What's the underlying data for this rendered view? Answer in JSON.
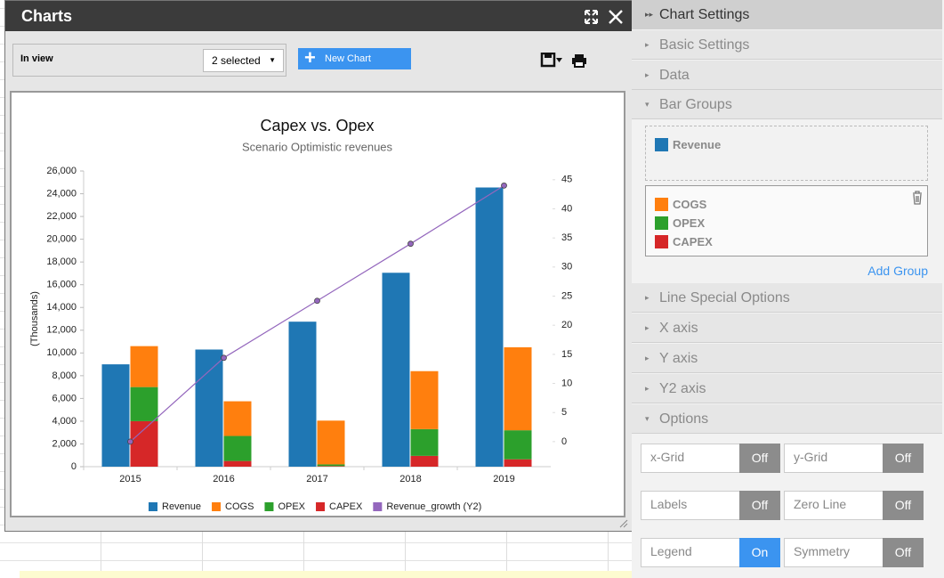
{
  "window": {
    "title": "Charts",
    "view_label": "In view",
    "select": "2 selected",
    "new_chart": "New Chart"
  },
  "chart_data": {
    "type": "bar",
    "title": "Capex vs. Opex",
    "subtitle": "Scenario Optimistic revenues",
    "ylabel": "(Thousands)",
    "categories": [
      "2015",
      "2016",
      "2017",
      "2018",
      "2019"
    ],
    "series": [
      {
        "name": "Revenue",
        "type": "bar",
        "color": "#1f77b4",
        "values": [
          9000,
          10300,
          12750,
          17050,
          24550
        ]
      },
      {
        "name": "COGS",
        "type": "bar",
        "stacked": true,
        "color": "#ff7f0e",
        "values": [
          3600,
          3050,
          3850,
          5100,
          7300
        ]
      },
      {
        "name": "OPEX",
        "type": "bar",
        "stacked": true,
        "color": "#2ca02c",
        "values": [
          3000,
          2200,
          150,
          2350,
          2550
        ]
      },
      {
        "name": "CAPEX",
        "type": "bar",
        "stacked": true,
        "color": "#d62728",
        "values": [
          4000,
          500,
          50,
          950,
          650
        ]
      },
      {
        "name": "Revenue_growth (Y2)",
        "type": "line",
        "axis": "y2",
        "color": "#9467bd",
        "values": [
          0,
          14.4,
          24.2,
          34,
          44
        ]
      }
    ],
    "ylim": [
      0,
      26000
    ],
    "yticks": [
      0,
      {
        "value": 2000,
        "label": "2,000"
      },
      {
        "value": 4000,
        "label": "4,000"
      },
      {
        "value": 6000,
        "label": "6,000"
      },
      {
        "value": 8000,
        "label": "8,000"
      },
      {
        "value": 10000,
        "label": "10,000"
      },
      {
        "value": 12000,
        "label": "12,000"
      },
      {
        "value": 14000,
        "label": "14,000"
      },
      {
        "value": 16000,
        "label": "16,000"
      },
      {
        "value": 18000,
        "label": "18,000"
      },
      {
        "value": 20000,
        "label": "20,000"
      },
      {
        "value": 22000,
        "label": "22,000"
      },
      {
        "value": 24000,
        "label": "24,000"
      },
      {
        "value": 26000,
        "label": "26,000"
      }
    ],
    "y2lim": [
      -4.3,
      46.5
    ],
    "y2ticks": [
      0,
      5,
      10,
      15,
      20,
      25,
      30,
      35,
      40,
      45
    ],
    "grid": false,
    "legend": "bottom"
  },
  "settings": {
    "title": "Chart Settings",
    "sections_top": [
      "Basic Settings",
      "Data",
      "Bar Groups"
    ],
    "bar_groups": [
      [
        "Revenue"
      ],
      [
        "COGS",
        "OPEX",
        "CAPEX"
      ]
    ],
    "add_group": "Add Group",
    "sections_bottom": [
      "Line Special Options",
      "X axis",
      "Y axis",
      "Y2 axis",
      "Options"
    ],
    "toggles": [
      {
        "label": "x-Grid",
        "state": "Off",
        "active": false
      },
      {
        "label": "y-Grid",
        "state": "Off",
        "active": false
      },
      {
        "label": "Labels",
        "state": "Off",
        "active": false
      },
      {
        "label": "Zero Line",
        "state": "Off",
        "active": false
      },
      {
        "label": "Legend",
        "state": "On",
        "active": true
      },
      {
        "label": "Symmetry",
        "state": "Off",
        "active": false
      }
    ]
  }
}
